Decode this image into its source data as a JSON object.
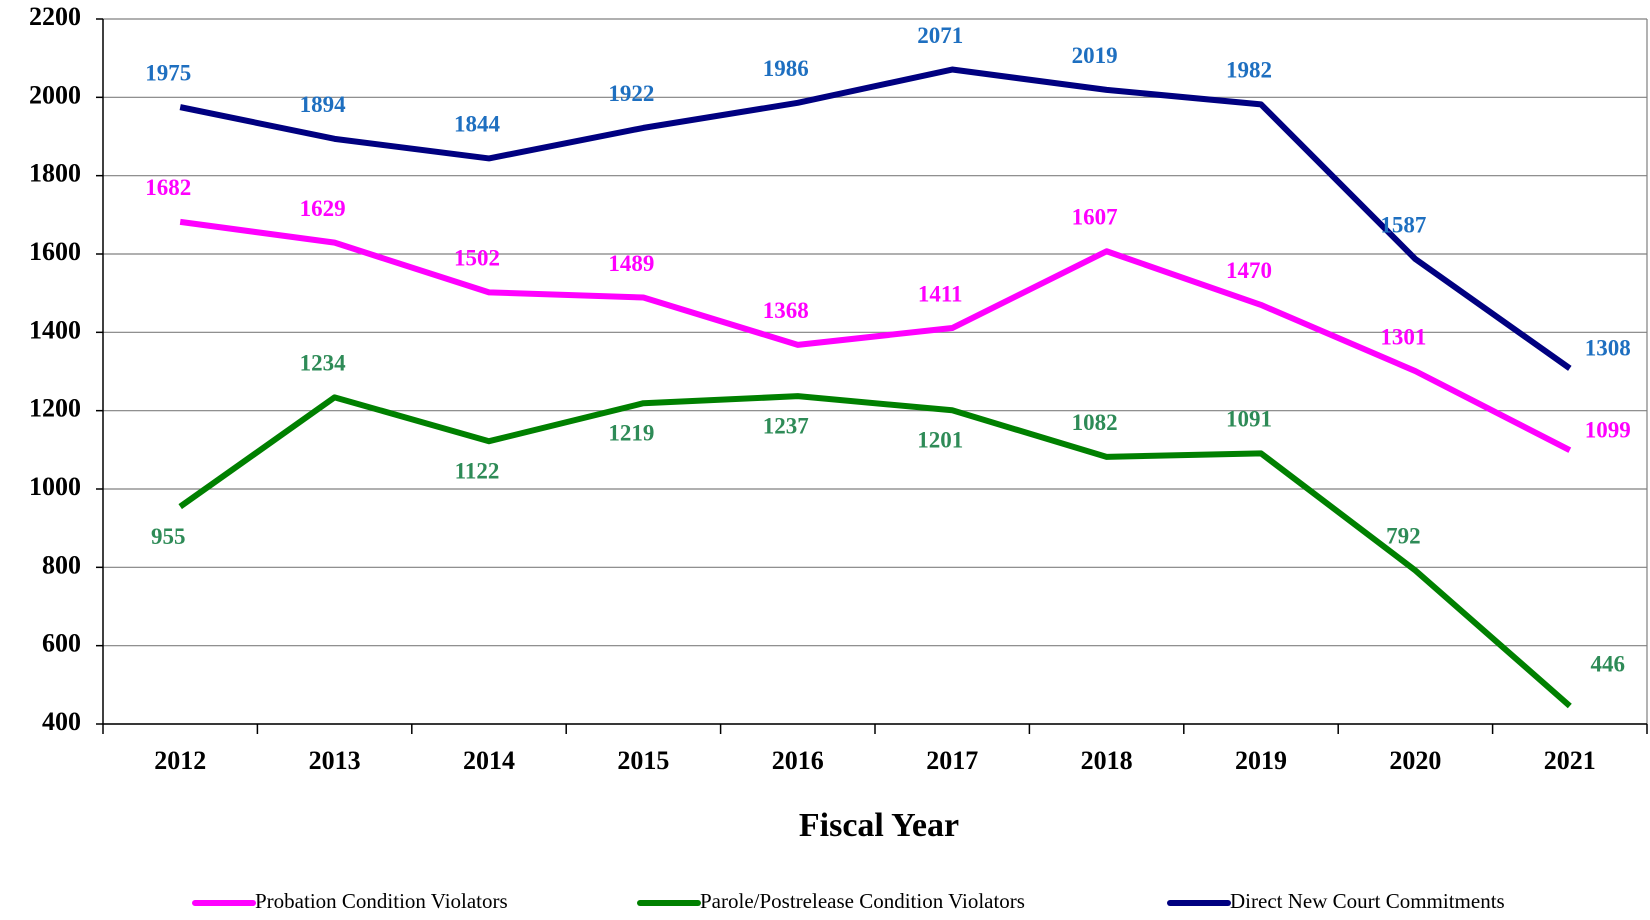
{
  "chart_data": {
    "type": "line",
    "x_label": "Fiscal Year",
    "categories": [
      "2012",
      "2013",
      "2014",
      "2015",
      "2016",
      "2017",
      "2018",
      "2019",
      "2020",
      "2021"
    ],
    "series": [
      {
        "name": "Probation Condition Violators",
        "color": "#ff00ff",
        "label_color": "#ff00ff",
        "values": [
          1682,
          1629,
          1502,
          1489,
          1368,
          1411,
          1607,
          1470,
          1301,
          1099
        ]
      },
      {
        "name": "Parole/Postrelease Condition Violators",
        "color": "#008000",
        "label_color": "#2e8b57",
        "values": [
          955,
          1234,
          1122,
          1219,
          1237,
          1201,
          1082,
          1091,
          792,
          446
        ]
      },
      {
        "name": "Direct New Court Commitments",
        "color": "#000080",
        "label_color": "#1e6fc0",
        "values": [
          1975,
          1894,
          1844,
          1922,
          1986,
          2071,
          2019,
          1982,
          1587,
          1308
        ]
      }
    ],
    "ylim": [
      400,
      2200
    ],
    "yticks": [
      400,
      600,
      800,
      1000,
      1200,
      1400,
      1600,
      1800,
      2000,
      2200
    ],
    "grid": true,
    "legend": "bottom"
  }
}
